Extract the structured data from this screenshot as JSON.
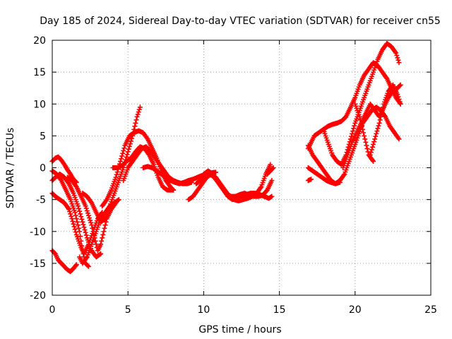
{
  "chart_data": {
    "type": "scatter",
    "title": "Day 185 of 2024, Sidereal Day-to-day VTEC variation (SDTVAR) for receiver cn55",
    "xlabel": "GPS time / hours",
    "ylabel": "SDTVAR / TECUs",
    "xlim": [
      0,
      25
    ],
    "ylim": [
      -20,
      20
    ],
    "xticks": [
      0,
      5,
      10,
      15,
      20,
      25
    ],
    "yticks": [
      -20,
      -15,
      -10,
      -5,
      0,
      5,
      10,
      15,
      20
    ],
    "grid": true,
    "marker": "+",
    "color": "#ff0000",
    "series": [
      {
        "name": "s1",
        "x": [
          0.0,
          0.2,
          0.4,
          0.6,
          0.8,
          1.0,
          1.2,
          1.4,
          1.6
        ],
        "y": [
          1.0,
          1.5,
          1.7,
          1.2,
          0.5,
          -0.3,
          -1.0,
          -1.8,
          -2.3
        ]
      },
      {
        "name": "s2",
        "x": [
          0.0,
          0.2,
          0.5,
          0.8,
          1.1,
          1.4,
          1.7,
          2.0,
          2.3,
          2.6,
          2.9,
          3.2
        ],
        "y": [
          -2.0,
          -1.5,
          -1.0,
          -1.5,
          -2.5,
          -4.0,
          -6.0,
          -8.5,
          -11.0,
          -13.0,
          -14.0,
          -13.5
        ]
      },
      {
        "name": "s3",
        "x": [
          0.0,
          0.2,
          0.5,
          0.8,
          1.1,
          1.3,
          1.6,
          1.9,
          2.1,
          2.4,
          2.7,
          3.0,
          3.3
        ],
        "y": [
          -4.0,
          -4.5,
          -5.0,
          -5.5,
          -6.5,
          -8.0,
          -10.5,
          -12.5,
          -13.5,
          -12.0,
          -10.0,
          -8.0,
          -7.0
        ]
      },
      {
        "name": "s4",
        "x": [
          0.0,
          0.3,
          0.6,
          0.9,
          1.2,
          1.5,
          1.8,
          2.0,
          2.2,
          2.4
        ],
        "y": [
          -0.5,
          -1.0,
          -2.0,
          -3.5,
          -5.0,
          -7.0,
          -10.0,
          -13.0,
          -15.0,
          -15.5
        ]
      },
      {
        "name": "s5",
        "x": [
          0.0,
          0.2,
          0.4,
          0.6,
          0.8,
          1.0,
          1.2,
          1.4,
          1.6
        ],
        "y": [
          -13.0,
          -13.5,
          -14.5,
          -15.0,
          -15.5,
          -16.0,
          -16.3,
          -15.8,
          -15.2
        ]
      },
      {
        "name": "s6",
        "x": [
          1.0,
          1.3,
          1.6,
          1.9,
          2.2,
          2.4,
          2.6,
          2.8,
          3.0,
          3.2,
          3.4,
          3.6,
          3.9,
          4.2
        ],
        "y": [
          -1.5,
          -2.0,
          -3.0,
          -4.5,
          -6.0,
          -7.5,
          -9.0,
          -11.0,
          -13.0,
          -12.0,
          -10.0,
          -8.0,
          -6.5,
          -5.5
        ]
      },
      {
        "name": "s7",
        "x": [
          1.8,
          2.0,
          2.3,
          2.6,
          2.9,
          3.2,
          3.5,
          3.8,
          4.1,
          4.4
        ],
        "y": [
          -14.0,
          -15.0,
          -14.0,
          -12.0,
          -10.0,
          -8.0,
          -7.0,
          -6.0,
          -5.5,
          -5.0
        ]
      },
      {
        "name": "s8",
        "x": [
          2.0,
          2.3,
          2.6,
          2.9,
          3.2,
          3.5,
          3.8,
          4.1,
          4.4,
          4.7,
          5.0,
          5.3,
          5.6,
          5.8
        ],
        "y": [
          -4.0,
          -4.5,
          -5.5,
          -7.0,
          -8.5,
          -8.0,
          -6.0,
          -4.0,
          -2.0,
          0.0,
          2.5,
          5.0,
          8.0,
          9.5
        ]
      },
      {
        "name": "s9",
        "x": [
          3.3,
          3.6,
          3.9,
          4.2,
          4.5,
          4.8,
          5.1,
          5.4,
          5.7,
          6.0,
          6.3,
          6.6,
          6.9,
          7.2,
          7.5,
          7.8,
          8.0
        ],
        "y": [
          -6.0,
          -5.0,
          -3.5,
          -1.5,
          1.0,
          3.5,
          5.0,
          5.5,
          5.8,
          5.5,
          4.5,
          3.0,
          1.5,
          -0.5,
          -2.0,
          -3.0,
          -3.5
        ]
      },
      {
        "name": "s10",
        "x": [
          4.0,
          4.3,
          4.6,
          4.9,
          5.2,
          5.5,
          5.8,
          6.1,
          6.4,
          6.7,
          7.0,
          7.3,
          7.6,
          8.0
        ],
        "y": [
          0.0,
          0.0,
          0.3,
          1.0,
          1.5,
          2.5,
          3.3,
          3.0,
          2.0,
          0.5,
          -1.5,
          -3.0,
          -3.5,
          -3.5
        ]
      },
      {
        "name": "s11",
        "x": [
          4.7,
          5.0,
          5.3,
          5.6,
          5.9,
          6.2,
          6.5,
          6.8,
          7.1,
          7.4,
          7.7,
          8.0,
          8.3,
          8.6,
          8.9,
          9.2
        ],
        "y": [
          -2.0,
          0.0,
          1.0,
          2.0,
          3.0,
          3.3,
          2.5,
          1.5,
          0.5,
          -0.5,
          -1.5,
          -2.0,
          -2.3,
          -2.5,
          -2.5,
          -2.3
        ]
      },
      {
        "name": "s12",
        "x": [
          6.0,
          6.3,
          6.6,
          6.9,
          7.2,
          7.5,
          7.8,
          8.1,
          8.4,
          8.7,
          9.0,
          9.3,
          9.6,
          9.9,
          10.2,
          10.5,
          10.8
        ],
        "y": [
          0.0,
          0.2,
          0.0,
          -0.5,
          -1.0,
          -1.5,
          -2.0,
          -2.3,
          -2.5,
          -2.3,
          -2.0,
          -1.8,
          -1.5,
          -1.2,
          -1.0,
          -0.8,
          -0.7
        ]
      },
      {
        "name": "s13",
        "x": [
          9.0,
          9.3,
          9.6,
          9.9,
          10.2,
          10.5,
          10.8,
          11.1,
          11.4,
          11.7,
          12.0,
          12.3,
          12.6,
          12.9,
          13.2,
          13.5,
          13.8,
          14.1,
          14.4
        ],
        "y": [
          -5.0,
          -4.5,
          -3.5,
          -2.5,
          -1.5,
          -1.0,
          -1.5,
          -2.5,
          -3.5,
          -4.5,
          -5.0,
          -5.2,
          -5.0,
          -4.8,
          -4.5,
          -4.0,
          -3.0,
          -1.0,
          0.5
        ]
      },
      {
        "name": "s14",
        "x": [
          9.5,
          9.8,
          10.1,
          10.4,
          10.7,
          11.0,
          11.3,
          11.6,
          11.9,
          12.2,
          12.5,
          12.8,
          13.1,
          13.4,
          13.7,
          14.0,
          14.3,
          14.5
        ],
        "y": [
          -2.5,
          -2.0,
          -1.5,
          -1.0,
          -1.5,
          -2.5,
          -3.5,
          -4.5,
          -5.0,
          -4.8,
          -4.5,
          -4.2,
          -4.0,
          -4.0,
          -4.2,
          -4.5,
          -4.8,
          -4.5
        ]
      },
      {
        "name": "s15",
        "x": [
          10.0,
          10.3,
          10.6,
          10.9,
          11.2,
          11.5,
          11.8,
          12.1,
          12.4,
          12.7,
          13.0,
          13.3,
          13.6,
          13.9,
          14.2,
          14.5
        ],
        "y": [
          -1.0,
          -0.5,
          -1.0,
          -2.0,
          -3.0,
          -4.0,
          -4.5,
          -4.5,
          -4.2,
          -4.0,
          -4.3,
          -4.5,
          -4.5,
          -4.3,
          -3.5,
          -2.0
        ]
      },
      {
        "name": "s16",
        "x": [
          14.2,
          14.4,
          14.6
        ],
        "y": [
          -1.0,
          -0.5,
          0.0
        ]
      },
      {
        "name": "s17",
        "x": [
          16.9,
          17.1
        ],
        "y": [
          -2.0,
          -1.8
        ]
      },
      {
        "name": "s18",
        "x": [
          16.9,
          17.1,
          17.3,
          17.6,
          17.9,
          18.2,
          18.5,
          18.8,
          19.1,
          19.4,
          19.7,
          20.0,
          20.3,
          20.6,
          20.9,
          21.2,
          21.5,
          21.8,
          22.1,
          22.4,
          22.7,
          23.0
        ],
        "y": [
          3.0,
          4.0,
          5.0,
          5.5,
          6.0,
          6.5,
          6.8,
          7.0,
          7.3,
          8.0,
          9.5,
          11.0,
          13.0,
          14.5,
          15.5,
          16.5,
          16.0,
          15.0,
          14.0,
          12.5,
          11.0,
          10.0
        ]
      },
      {
        "name": "s19",
        "x": [
          16.9,
          17.2,
          17.5,
          17.8,
          18.1,
          18.4,
          18.7,
          19.0,
          19.3,
          19.6,
          19.9,
          20.2,
          20.5,
          20.8,
          21.1,
          21.4,
          21.7,
          22.0,
          22.3,
          22.6,
          22.9
        ],
        "y": [
          3.5,
          2.0,
          1.0,
          0.0,
          -1.0,
          -2.0,
          -2.5,
          -2.0,
          -1.0,
          1.0,
          3.0,
          5.0,
          7.0,
          8.0,
          9.0,
          9.5,
          9.0,
          8.0,
          6.5,
          5.5,
          4.5
        ]
      },
      {
        "name": "s20",
        "x": [
          16.9,
          17.2,
          17.5,
          17.8,
          18.1,
          18.4,
          18.7,
          19.0
        ],
        "y": [
          0.0,
          -0.5,
          -1.0,
          -1.5,
          -2.0,
          -2.3,
          -2.5,
          -2.3
        ]
      },
      {
        "name": "s21",
        "x": [
          17.9,
          18.2,
          18.5,
          18.8,
          19.1,
          19.4,
          19.7,
          20.0,
          20.3,
          20.6,
          20.9,
          21.2,
          21.5,
          21.8,
          22.1,
          22.4,
          22.7,
          22.9
        ],
        "y": [
          6.0,
          4.0,
          2.0,
          1.0,
          0.5,
          2.0,
          4.5,
          7.0,
          9.0,
          11.0,
          13.0,
          15.0,
          17.0,
          18.5,
          19.5,
          19.0,
          18.0,
          16.5
        ]
      },
      {
        "name": "s22",
        "x": [
          19.2,
          19.5,
          19.8,
          20.1,
          20.4,
          20.7,
          21.0,
          21.3,
          21.6,
          21.9,
          22.2,
          22.5,
          22.8,
          23.0
        ],
        "y": [
          0.0,
          2.0,
          4.0,
          5.5,
          7.0,
          8.5,
          10.0,
          9.0,
          8.0,
          9.5,
          11.0,
          12.0,
          12.5,
          13.0
        ]
      },
      {
        "name": "s23",
        "x": [
          20.0,
          20.3,
          20.6,
          20.9,
          21.2
        ],
        "y": [
          10.0,
          8.0,
          5.0,
          2.0,
          1.0
        ]
      },
      {
        "name": "s24",
        "x": [
          21.0,
          21.3,
          21.6,
          21.9,
          22.2,
          22.5,
          22.8,
          23.0
        ],
        "y": [
          2.0,
          4.5,
          7.0,
          10.0,
          12.0,
          13.0,
          11.5,
          10.0
        ]
      }
    ]
  }
}
